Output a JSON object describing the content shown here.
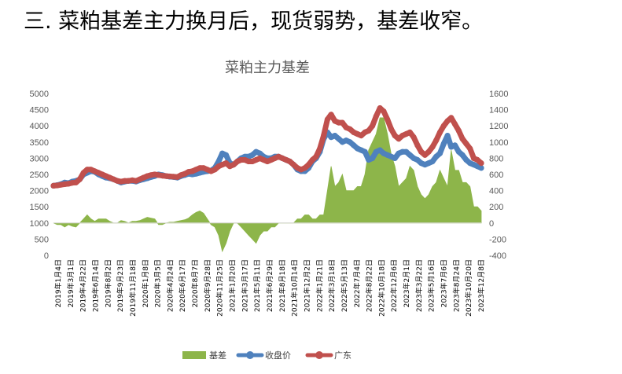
{
  "heading": "三. 菜粕基差主力换月后，现货弱势，基差收窄。",
  "chart_data": {
    "type": "line",
    "title": "菜粕主力基差",
    "left_axis": {
      "min": 0,
      "max": 5000,
      "ticks": [
        "0",
        "500",
        "1000",
        "1500",
        "2000",
        "2500",
        "3000",
        "3500",
        "4000",
        "4500",
        "5000"
      ]
    },
    "right_axis": {
      "min": -400,
      "max": 1600,
      "ticks": [
        "-400",
        "-200",
        "0",
        "200",
        "400",
        "600",
        "800",
        "1000",
        "1200",
        "1400",
        "1600"
      ]
    },
    "x_tick_labels": [
      "2019年1月4日",
      "2019年3月1日",
      "2019年4月22日",
      "2019年6月14日",
      "2019年8月2日",
      "2019年9月23日",
      "2019年11月18日",
      "2020年1月8日",
      "2020年3月5日",
      "2020年4月24日",
      "2020年6月17日",
      "2020年8月7日",
      "2020年9月28日",
      "2020年11月25日",
      "2021年1月20日",
      "2021年3月17日",
      "2021年5月11日",
      "2021年6月29日",
      "2021年8月18日",
      "2021年10月14日",
      "2021年12月2日",
      "2022年1月21日",
      "2022年3月18日",
      "2022年5月13日",
      "2022年7月4日",
      "2022年8月22日",
      "2022年10月18日",
      "2022年12月6日",
      "2023年2月1日",
      "2023年3月22日",
      "2023年5月16日",
      "2023年7月6日",
      "2023年8月24日",
      "2023年10月20日",
      "2023年12月8日"
    ],
    "legend": [
      {
        "name": "基差",
        "color": "#8db54a"
      },
      {
        "name": "收盘价",
        "color": "#4f81bd"
      },
      {
        "name": "广东",
        "color": "#c0504d"
      }
    ],
    "series": [
      {
        "name": "收盘价",
        "axis": "left",
        "color": "#4f81bd",
        "values": [
          2150,
          2170,
          2200,
          2250,
          2230,
          2280,
          2300,
          2350,
          2500,
          2550,
          2600,
          2580,
          2500,
          2450,
          2400,
          2380,
          2350,
          2300,
          2250,
          2280,
          2300,
          2300,
          2280,
          2320,
          2350,
          2380,
          2420,
          2450,
          2500,
          2480,
          2450,
          2430,
          2420,
          2400,
          2450,
          2480,
          2520,
          2500,
          2520,
          2550,
          2580,
          2600,
          2620,
          2700,
          2900,
          3150,
          3100,
          2850,
          2800,
          2900,
          3000,
          3050,
          3050,
          3100,
          3200,
          3150,
          3050,
          3000,
          3000,
          3050,
          3050,
          3000,
          2950,
          2900,
          2800,
          2650,
          2600,
          2600,
          2700,
          2900,
          3000,
          3200,
          3600,
          3800,
          3650,
          3700,
          3600,
          3500,
          3550,
          3500,
          3400,
          3300,
          3250,
          3200,
          2950,
          3000,
          3200,
          3250,
          3150,
          3100,
          3050,
          3000,
          3150,
          3200,
          3200,
          3100,
          3000,
          2950,
          2850,
          2800,
          2850,
          2900,
          3050,
          3150,
          3450,
          3700,
          3350,
          3400,
          3200,
          3100,
          2950,
          2850,
          2800,
          2750,
          2700
        ]
      },
      {
        "name": "广东",
        "axis": "left",
        "color": "#c0504d",
        "values": [
          2150,
          2160,
          2180,
          2200,
          2210,
          2240,
          2250,
          2350,
          2550,
          2650,
          2650,
          2600,
          2550,
          2500,
          2450,
          2400,
          2350,
          2300,
          2280,
          2300,
          2300,
          2320,
          2300,
          2350,
          2400,
          2450,
          2480,
          2500,
          2480,
          2460,
          2450,
          2440,
          2430,
          2420,
          2480,
          2520,
          2580,
          2600,
          2650,
          2700,
          2700,
          2650,
          2600,
          2650,
          2750,
          2800,
          2850,
          2750,
          2800,
          2900,
          2950,
          2950,
          2900,
          2900,
          2950,
          3000,
          2950,
          2900,
          2950,
          3000,
          3050,
          3000,
          2950,
          2900,
          2800,
          2700,
          2650,
          2700,
          2800,
          2950,
          3050,
          3300,
          3700,
          4200,
          4350,
          4150,
          4100,
          4100,
          3950,
          3900,
          3800,
          3750,
          3700,
          3800,
          3850,
          4000,
          4300,
          4550,
          4450,
          4200,
          3900,
          3700,
          3600,
          3700,
          3750,
          3800,
          3650,
          3400,
          3200,
          3100,
          3200,
          3350,
          3550,
          3800,
          4000,
          4150,
          4250,
          4050,
          3850,
          3600,
          3450,
          3300,
          3000,
          2950,
          2850
        ]
      },
      {
        "name": "基差",
        "axis": "right",
        "color": "#8db54a",
        "fill": "area",
        "values": [
          0,
          -20,
          -20,
          -50,
          -20,
          -40,
          -50,
          0,
          50,
          100,
          50,
          20,
          50,
          50,
          50,
          20,
          0,
          0,
          30,
          20,
          0,
          20,
          20,
          30,
          50,
          70,
          60,
          50,
          -20,
          -20,
          0,
          10,
          10,
          20,
          30,
          40,
          60,
          100,
          130,
          150,
          120,
          50,
          -20,
          -50,
          -150,
          -350,
          -250,
          -100,
          0,
          0,
          -50,
          -100,
          -150,
          -200,
          -250,
          -150,
          -100,
          -100,
          -50,
          -50,
          0,
          0,
          0,
          0,
          0,
          50,
          50,
          100,
          100,
          50,
          50,
          100,
          100,
          400,
          700,
          450,
          500,
          600,
          400,
          400,
          400,
          450,
          450,
          600,
          900,
          1000,
          1100,
          1300,
          1300,
          1100,
          850,
          700,
          450,
          500,
          550,
          700,
          650,
          450,
          350,
          300,
          350,
          450,
          500,
          650,
          550,
          450,
          900,
          650,
          650,
          500,
          500,
          450,
          200,
          200,
          150
        ]
      }
    ]
  }
}
